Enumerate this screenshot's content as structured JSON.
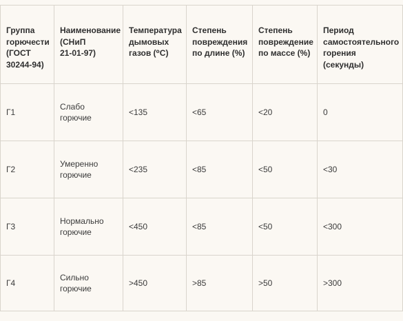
{
  "table": {
    "headers": [
      "Группа\nгорючести\n(ГОСТ\n30244-94)",
      "Наименование\n(СНиП\n21-01-97)",
      "Температура\nдымовых\nгазов (⁰С)",
      "Степень\nповреждения\nпо длине (%)",
      "Степень\nповреждение\nпо массе (%)",
      "Период\nсамостоятельного\nгорения\n(секунды)"
    ],
    "rows": [
      [
        "Г1",
        "Слабо\nгорючие",
        "<135",
        "<65",
        "<20",
        "0"
      ],
      [
        "Г2",
        "Умеренно\nгорючие",
        "<235",
        "<85",
        "<50",
        "<30"
      ],
      [
        "Г3",
        "Нормально\nгорючие",
        "<450",
        "<85",
        "<50",
        "<300"
      ],
      [
        "Г4",
        "Сильно\nгорючие",
        ">450",
        ">85",
        ">50",
        ">300"
      ]
    ]
  }
}
